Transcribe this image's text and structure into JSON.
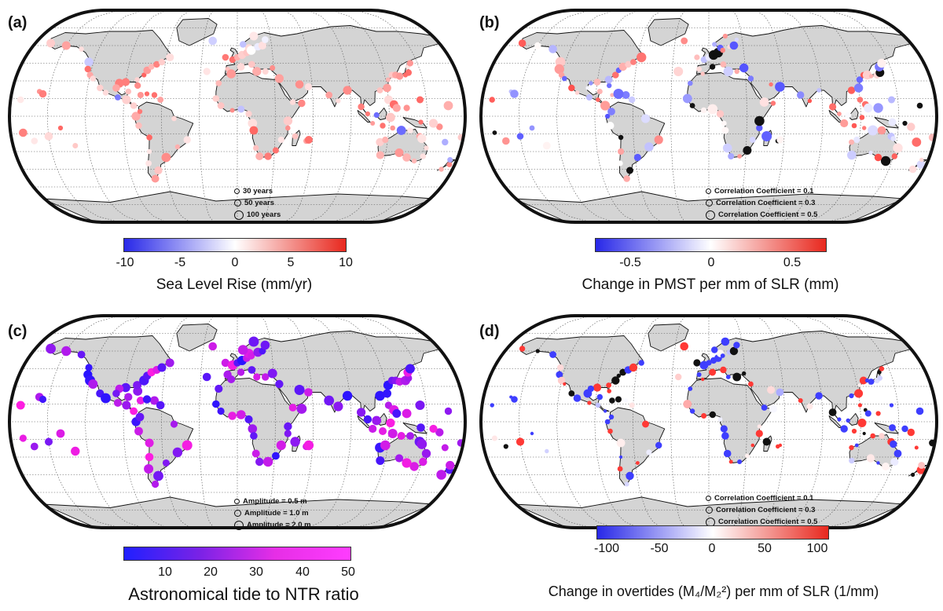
{
  "colors": {
    "land": "#d4d4d4",
    "ocean": "#ffffff",
    "grid": "#555555",
    "red": "#e8281e",
    "blue": "#2828e8",
    "magenta": "#e62ee6",
    "violet": "#7a22e6"
  },
  "panels": [
    {
      "label": "(a)",
      "colorbar": {
        "gradient": "bwr",
        "min": -10,
        "max": 10,
        "ticks": [
          "-10",
          "-5",
          "0",
          "5",
          "10"
        ],
        "title": "Sea Level Rise (mm/yr)"
      },
      "legend": [
        "30 years",
        "50 years",
        "100 years"
      ]
    },
    {
      "label": "(b)",
      "colorbar": {
        "gradient": "bwr",
        "min": -0.75,
        "max": 0.75,
        "ticks": [
          "-0.5",
          "0",
          "0.5"
        ],
        "title": "Change in PMST per mm of SLR (mm)"
      },
      "legend": [
        "Correlation Coefficient = 0.1",
        "Correlation Coefficient = 0.3",
        "Correlation Coefficient = 0.5"
      ]
    },
    {
      "label": "(c)",
      "colorbar": {
        "gradient": "bm",
        "min": 0,
        "max": 50,
        "ticks": [
          "10",
          "20",
          "30",
          "40",
          "50"
        ],
        "title": "Astronomical tide to NTR ratio"
      },
      "legend": [
        "Amplitude = 0.5 m",
        "Amplitude = 1.0 m",
        "Amplitude = 2.0 m"
      ]
    },
    {
      "label": "(d)",
      "colorbar": {
        "gradient": "bwr",
        "min": -110,
        "max": 110,
        "ticks": [
          "-100",
          "-50",
          "0",
          "50",
          "100"
        ],
        "title": "Change in overtides (M₄/M₂²) per mm of SLR (1/mm)"
      },
      "legend": [
        "Correlation Coefficient = 0.1",
        "Correlation Coefficient = 0.3",
        "Correlation Coefficient = 0.5"
      ]
    }
  ]
}
